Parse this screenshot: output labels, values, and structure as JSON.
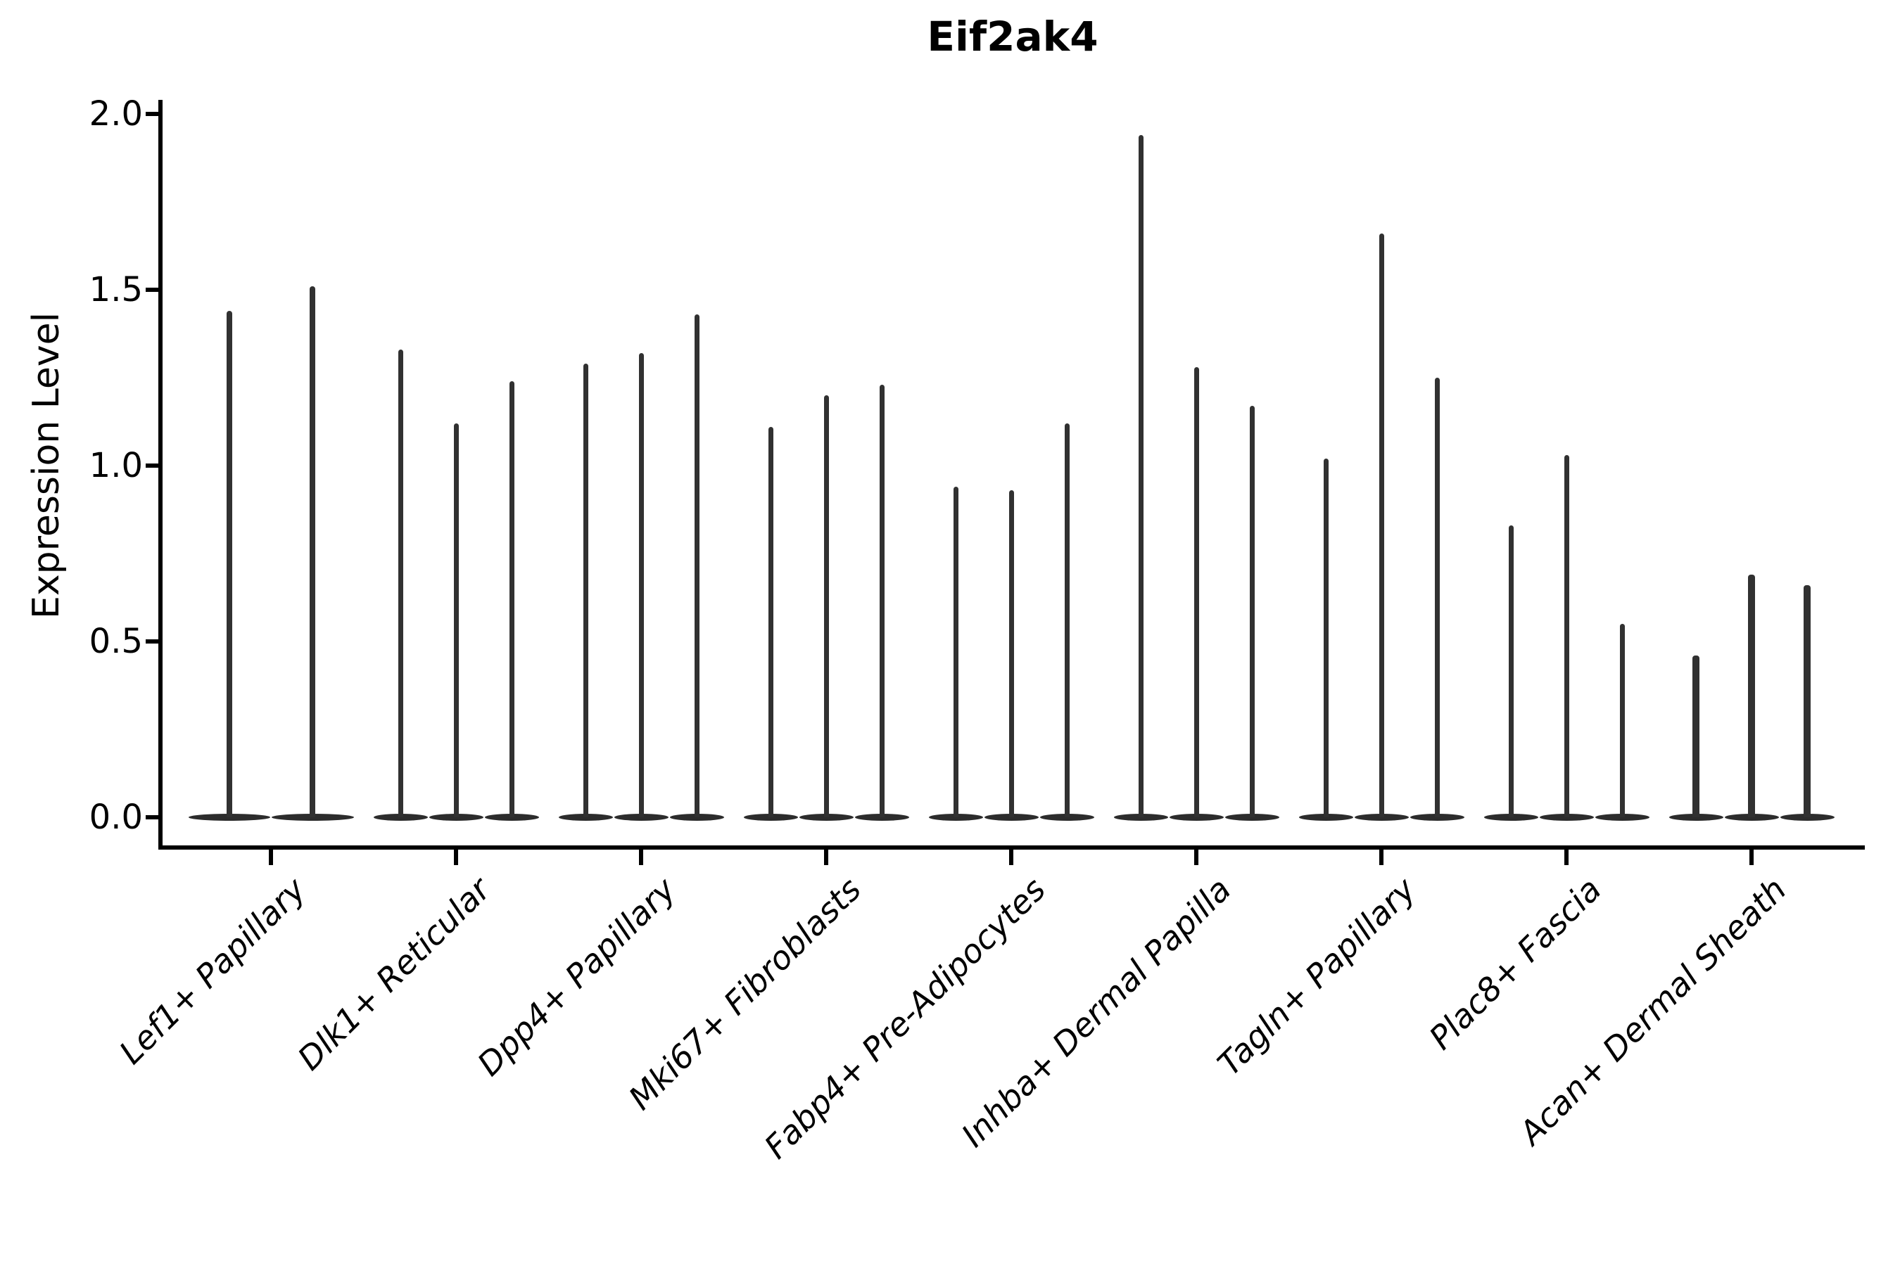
{
  "title": "Eif2ak4",
  "y_axis": {
    "label": "Expression Level",
    "tick_labels": [
      "0.0",
      "0.5",
      "1.0",
      "1.5",
      "2.0"
    ]
  },
  "chart_data": {
    "type": "violin",
    "title": "Eif2ak4",
    "ylabel": "Expression Level",
    "xlabel": "",
    "ylim": [
      0,
      2.04
    ],
    "yticks": [
      0.0,
      0.5,
      1.0,
      1.5,
      2.0
    ],
    "grid": false,
    "legend": false,
    "style": "sparse expression violins: wide flat base at 0 with thin vertical density spike per violin; spines on left and bottom only",
    "categories": [
      "Lef1+ Papillary",
      "Dlk1+ Reticular",
      "Dpp4+ Papillary",
      "Mki67+ Fibroblasts",
      "Fabp4+ Pre-Adipocytes",
      "Inhba+ Dermal Papilla",
      "Tagln+ Papillary",
      "Plac8+ Fascia",
      "Acan+ Dermal Sheath"
    ],
    "series": [
      {
        "category": "Lef1+ Papillary",
        "violin_max_expression": [
          1.44,
          1.51
        ]
      },
      {
        "category": "Dlk1+ Reticular",
        "violin_max_expression": [
          1.33,
          1.12,
          1.24
        ]
      },
      {
        "category": "Dpp4+ Papillary",
        "violin_max_expression": [
          1.29,
          1.32,
          1.43
        ]
      },
      {
        "category": "Mki67+ Fibroblasts",
        "violin_max_expression": [
          1.11,
          1.2,
          1.23
        ]
      },
      {
        "category": "Fabp4+ Pre-Adipocytes",
        "violin_max_expression": [
          0.94,
          0.93,
          1.12
        ]
      },
      {
        "category": "Inhba+ Dermal Papilla",
        "violin_max_expression": [
          1.94,
          1.28,
          1.17
        ]
      },
      {
        "category": "Tagln+ Papillary",
        "violin_max_expression": [
          1.02,
          1.66,
          1.25
        ]
      },
      {
        "category": "Plac8+ Fascia",
        "violin_max_expression": [
          0.83,
          1.03,
          0.55
        ]
      },
      {
        "category": "Acan+ Dermal Sheath",
        "violin_max_expression": [
          0.46,
          0.69,
          0.66
        ]
      }
    ]
  },
  "colors": {
    "background": "#ffffff",
    "axis": "#000000",
    "violin": "#313131"
  }
}
